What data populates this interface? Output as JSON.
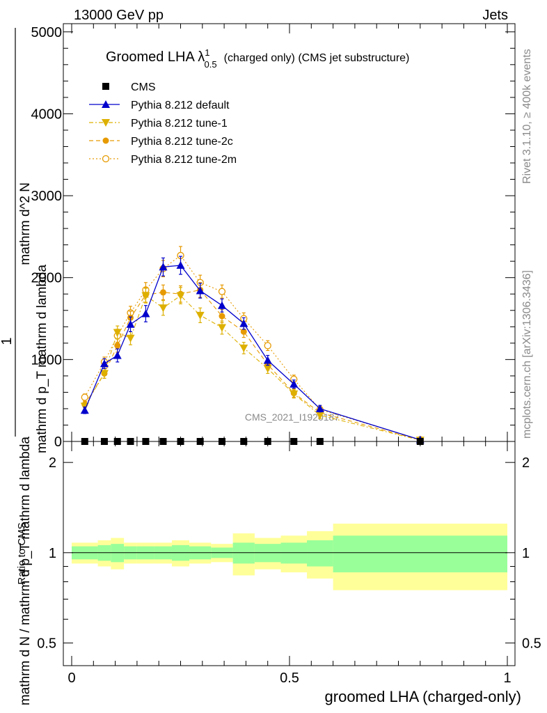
{
  "header": {
    "left": "13000 GeV pp",
    "right": "Jets"
  },
  "side": {
    "rivet": "Rivet 3.1.10, ≥ 400k events",
    "mcplots": "mcplots.cern.ch [arXiv:1306.3436]"
  },
  "chart_data": [
    {
      "type": "line",
      "title": "Groomed LHA λ",
      "title_sup": "1",
      "title_sub": "0.5",
      "title_rest": "(charged only) (CMS jet substructure)",
      "watermark": "CMS_2021_I1920187",
      "xlabel": "groomed LHA (charged-only)",
      "ylabel_num": "1",
      "ylabel_main": "mathrm d N / mathrm d p_T mathrm d lambda",
      "ylabel_top": "mathrm d^2 N",
      "ylabel_sub": "mathrm d p_T mathrm d lambda",
      "xlim": [
        0,
        1
      ],
      "ylim": [
        0,
        5100
      ],
      "yticks": [
        {
          "v": 0,
          "label": "0"
        },
        {
          "v": 1000,
          "label": "1000"
        },
        {
          "v": 2000,
          "label": "2000"
        },
        {
          "v": 3000,
          "label": "3000"
        },
        {
          "v": 4000,
          "label": "4000"
        },
        {
          "v": 5000,
          "label": "5000"
        }
      ],
      "x": [
        0.03,
        0.075,
        0.105,
        0.135,
        0.17,
        0.21,
        0.25,
        0.295,
        0.345,
        0.395,
        0.45,
        0.51,
        0.57,
        0.8
      ],
      "series": [
        {
          "name": "CMS",
          "color": "#000000",
          "marker": "square",
          "values": [
            0,
            0,
            0,
            0,
            0,
            0,
            0,
            0,
            0,
            0,
            0,
            0,
            0,
            0
          ]
        },
        {
          "name": "Pythia 8.212 default",
          "color": "#0000cc",
          "marker": "triangle-up",
          "dash": "",
          "values": [
            380,
            950,
            1050,
            1430,
            1560,
            2130,
            2150,
            1840,
            1660,
            1440,
            990,
            700,
            400,
            20
          ],
          "err": [
            40,
            60,
            80,
            90,
            100,
            110,
            110,
            90,
            80,
            70,
            60,
            50,
            40,
            10
          ]
        },
        {
          "name": "Pythia 8.212 tune-1",
          "color": "#ddb000",
          "marker": "triangle-down",
          "dash": "6,3,2,3",
          "values": [
            430,
            830,
            1330,
            1260,
            1780,
            1630,
            1780,
            1540,
            1390,
            1140,
            890,
            580,
            320,
            15
          ],
          "err": [
            40,
            60,
            80,
            80,
            90,
            90,
            100,
            90,
            80,
            70,
            60,
            50,
            40,
            10
          ]
        },
        {
          "name": "Pythia 8.212 tune-2c",
          "color": "#e69a00",
          "marker": "circle",
          "dash": "6,4",
          "values": [
            450,
            830,
            1170,
            1510,
            1790,
            1820,
            1800,
            1850,
            1530,
            1340,
            940,
            590,
            350,
            18
          ],
          "err": [
            40,
            60,
            80,
            80,
            90,
            90,
            100,
            90,
            80,
            70,
            60,
            50,
            40,
            10
          ]
        },
        {
          "name": "Pythia 8.212 tune-2m",
          "color": "#e69a00",
          "marker": "circle-open",
          "dash": "2,3",
          "values": [
            540,
            970,
            1290,
            1570,
            1850,
            2110,
            2270,
            1940,
            1830,
            1500,
            1170,
            760,
            390,
            22
          ],
          "err": [
            40,
            60,
            80,
            80,
            90,
            100,
            110,
            90,
            80,
            70,
            60,
            50,
            40,
            10
          ]
        }
      ]
    },
    {
      "type": "area",
      "ylabel": "Ratio to CMS",
      "ylim": [
        0.42,
        2.35
      ],
      "yticks": [
        {
          "v": 0.5,
          "label": "0.5"
        },
        {
          "v": 1,
          "label": "1"
        },
        {
          "v": 2,
          "label": "2"
        }
      ],
      "xticks": [
        {
          "v": 0,
          "label": "0"
        },
        {
          "v": 0.5,
          "label": "0.5"
        },
        {
          "v": 1,
          "label": "1"
        }
      ],
      "bins": [
        {
          "lo": 0.0,
          "hi": 0.06,
          "inner": 0.05,
          "outer": 0.08
        },
        {
          "lo": 0.06,
          "hi": 0.09,
          "inner": 0.06,
          "outer": 0.1
        },
        {
          "lo": 0.09,
          "hi": 0.12,
          "inner": 0.07,
          "outer": 0.12
        },
        {
          "lo": 0.12,
          "hi": 0.15,
          "inner": 0.05,
          "outer": 0.08
        },
        {
          "lo": 0.15,
          "hi": 0.19,
          "inner": 0.05,
          "outer": 0.08
        },
        {
          "lo": 0.19,
          "hi": 0.23,
          "inner": 0.05,
          "outer": 0.08
        },
        {
          "lo": 0.23,
          "hi": 0.27,
          "inner": 0.06,
          "outer": 0.1
        },
        {
          "lo": 0.27,
          "hi": 0.32,
          "inner": 0.05,
          "outer": 0.08
        },
        {
          "lo": 0.32,
          "hi": 0.37,
          "inner": 0.04,
          "outer": 0.07
        },
        {
          "lo": 0.37,
          "hi": 0.42,
          "inner": 0.08,
          "outer": 0.16
        },
        {
          "lo": 0.42,
          "hi": 0.48,
          "inner": 0.07,
          "outer": 0.12
        },
        {
          "lo": 0.48,
          "hi": 0.54,
          "inner": 0.08,
          "outer": 0.14
        },
        {
          "lo": 0.54,
          "hi": 0.6,
          "inner": 0.1,
          "outer": 0.18
        },
        {
          "lo": 0.6,
          "hi": 1.0,
          "inner": 0.14,
          "outer": 0.25
        }
      ]
    }
  ]
}
